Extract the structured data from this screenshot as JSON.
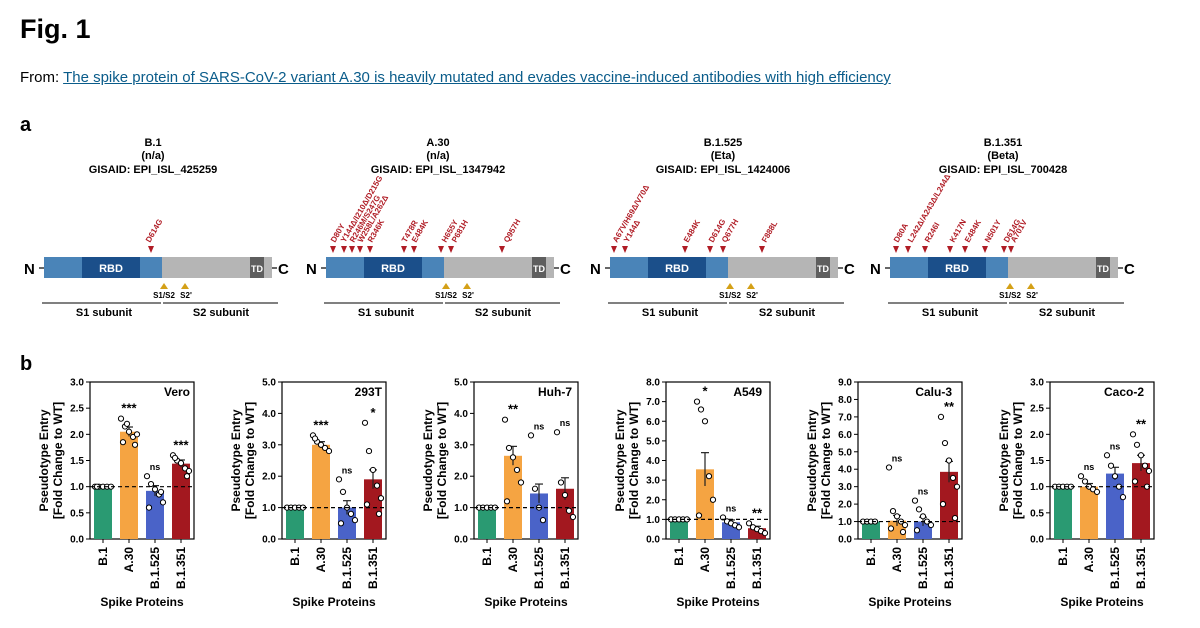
{
  "figure": {
    "title": "Fig. 1",
    "from_label": "From:",
    "link_text": "The spike protein of SARS-CoV-2 variant A.30 is heavily mutated and evades vaccine-induced antibodies with high efficiency"
  },
  "panel_a": {
    "label": "a",
    "n_label": "N",
    "c_label": "C",
    "rbd_label": "RBD",
    "td_label": "TD",
    "s1s2_label": "S1/S2",
    "s2p_label": "S2'",
    "s1_subunit": "S1 subunit",
    "s2_subunit": "S2 subunit",
    "variants": [
      {
        "name": "B.1",
        "alias": "(n/a)",
        "gisaid": "GISAID: EPI_ISL_425259",
        "mutations": [
          "D614G"
        ]
      },
      {
        "name": "A.30",
        "alias": "(n/a)",
        "gisaid": "GISAID: EPI_ISL_1347942",
        "mutations": [
          "D80Y",
          "Y144Δ/I210Δ/D215G",
          "R246M/S247G",
          "W258L/A262Δ",
          "R346K",
          "T478R",
          "E484K",
          "H655Y",
          "P681H",
          "Q957H"
        ]
      },
      {
        "name": "B.1.525",
        "alias": "(Eta)",
        "gisaid": "GISAID: EPI_ISL_1424006",
        "mutations": [
          "A67V/H69Δ/V70Δ",
          "Y144Δ",
          "E484K",
          "D614G",
          "Q677H",
          "F888L"
        ]
      },
      {
        "name": "B.1.351",
        "alias": "(Beta)",
        "gisaid": "GISAID: EPI_ISL_700428",
        "mutations": [
          "D80A",
          "L242Δ/A243Δ/L244Δ",
          "R246I",
          "K417N",
          "E484K",
          "N501Y",
          "D614G",
          "A701V"
        ]
      }
    ]
  },
  "panel_b": {
    "label": "b",
    "ylabel": [
      "Pseudotype Entry",
      "[Fold Change to WT]"
    ],
    "xlabel": "Spike Proteins",
    "colors": {
      "B.1": "#2a9a72",
      "A.30": "#f5a442",
      "B.1.525": "#4a63c8",
      "B.1.351": "#a3181f"
    }
  },
  "chart_data": [
    {
      "type": "bar",
      "title": "Vero",
      "categories": [
        "B.1",
        "A.30",
        "B.1.525",
        "B.1.351"
      ],
      "values": [
        1.0,
        2.05,
        0.92,
        1.44
      ],
      "errors": [
        0.02,
        0.09,
        0.1,
        0.07
      ],
      "ylim": [
        0,
        3
      ],
      "yticks": [
        "0.0",
        "0.5",
        "1.0",
        "1.5",
        "2.0",
        "2.5",
        "3.0"
      ],
      "significance": [
        "",
        "***",
        "ns",
        "***"
      ],
      "points": [
        [
          1,
          1,
          1,
          1,
          1,
          1
        ],
        [
          2.3,
          2.15,
          2.05,
          1.95,
          2.0,
          1.85,
          1.8,
          2.2
        ],
        [
          1.2,
          1.05,
          0.95,
          0.85,
          0.7,
          0.6,
          0.9
        ],
        [
          1.6,
          1.5,
          1.45,
          1.35,
          1.3,
          1.55,
          1.2
        ]
      ]
    },
    {
      "type": "bar",
      "title": "293T",
      "categories": [
        "B.1",
        "A.30",
        "B.1.525",
        "B.1.351"
      ],
      "values": [
        1.0,
        3.0,
        1.0,
        1.9
      ],
      "errors": [
        0.02,
        0.1,
        0.22,
        0.3
      ],
      "ylim": [
        0,
        5
      ],
      "yticks": [
        "0.0",
        "1.0",
        "2.0",
        "3.0",
        "4.0",
        "5.0"
      ],
      "significance": [
        "",
        "***",
        "ns",
        "*"
      ],
      "points": [
        [
          1,
          1,
          1,
          1,
          1
        ],
        [
          3.3,
          3.1,
          3.0,
          2.9,
          2.8,
          3.2
        ],
        [
          1.9,
          1.5,
          1.0,
          0.8,
          0.6,
          0.5
        ],
        [
          3.7,
          2.8,
          2.2,
          1.7,
          1.3,
          1.1,
          0.8
        ]
      ]
    },
    {
      "type": "bar",
      "title": "Huh-7",
      "categories": [
        "B.1",
        "A.30",
        "B.1.525",
        "B.1.351"
      ],
      "values": [
        1.0,
        2.65,
        1.45,
        1.6
      ],
      "errors": [
        0.02,
        0.3,
        0.3,
        0.35
      ],
      "ylim": [
        0,
        5
      ],
      "yticks": [
        "0.0",
        "1.0",
        "2.0",
        "3.0",
        "4.0",
        "5.0"
      ],
      "significance": [
        "",
        "**",
        "ns",
        "ns"
      ],
      "points": [
        [
          1,
          1,
          1,
          1,
          1
        ],
        [
          3.8,
          2.9,
          2.6,
          2.2,
          1.8,
          1.2
        ],
        [
          3.3,
          1.6,
          1.0,
          0.6
        ],
        [
          3.4,
          1.8,
          1.4,
          0.9,
          0.7
        ]
      ]
    },
    {
      "type": "bar",
      "title": "A549",
      "categories": [
        "B.1",
        "A.30",
        "B.1.525",
        "B.1.351"
      ],
      "values": [
        1.0,
        3.55,
        0.85,
        0.55
      ],
      "errors": [
        0.02,
        0.85,
        0.12,
        0.1
      ],
      "ylim": [
        0,
        8
      ],
      "yticks": [
        "0.0",
        "1.0",
        "2.0",
        "3.0",
        "4.0",
        "5.0",
        "6.0",
        "7.0",
        "8.0"
      ],
      "significance": [
        "",
        "*",
        "ns",
        "**"
      ],
      "points": [
        [
          1,
          1,
          1,
          1,
          1
        ],
        [
          7.0,
          6.6,
          6.0,
          3.2,
          2.0,
          1.2
        ],
        [
          1.1,
          0.9,
          0.8,
          0.7,
          0.6
        ],
        [
          0.8,
          0.6,
          0.5,
          0.4,
          0.3
        ]
      ]
    },
    {
      "type": "bar",
      "title": "Calu-3",
      "categories": [
        "B.1",
        "A.30",
        "B.1.525",
        "B.1.351"
      ],
      "values": [
        1.0,
        1.05,
        1.0,
        3.85
      ],
      "errors": [
        0.02,
        0.3,
        0.25,
        0.6
      ],
      "ylim": [
        0,
        9
      ],
      "yticks": [
        "0.0",
        "1.0",
        "2.0",
        "3.0",
        "4.0",
        "5.0",
        "6.0",
        "7.0",
        "8.0",
        "9.0"
      ],
      "significance": [
        "",
        "ns",
        "ns",
        "**"
      ],
      "points": [
        [
          1,
          1,
          1,
          1
        ],
        [
          4.1,
          1.6,
          1.3,
          1.0,
          0.8,
          0.6,
          0.4
        ],
        [
          2.2,
          1.7,
          1.3,
          1.0,
          0.8,
          0.5
        ],
        [
          7.0,
          5.5,
          4.5,
          3.5,
          3.0,
          2.0,
          1.2
        ]
      ]
    },
    {
      "type": "bar",
      "title": "Caco-2",
      "categories": [
        "B.1",
        "A.30",
        "B.1.525",
        "B.1.351"
      ],
      "values": [
        1.0,
        1.0,
        1.25,
        1.45
      ],
      "errors": [
        0.02,
        0.06,
        0.12,
        0.15
      ],
      "ylim": [
        0,
        3
      ],
      "yticks": [
        "0.0",
        "0.5",
        "1.0",
        "1.5",
        "2.0",
        "2.5",
        "3.0"
      ],
      "significance": [
        "",
        "ns",
        "ns",
        "**"
      ],
      "points": [
        [
          1,
          1,
          1,
          1,
          1
        ],
        [
          1.2,
          1.1,
          1.0,
          0.95,
          0.9
        ],
        [
          1.6,
          1.4,
          1.2,
          1.0,
          0.8
        ],
        [
          2.0,
          1.8,
          1.6,
          1.4,
          1.3,
          1.1,
          1.0
        ]
      ]
    }
  ]
}
